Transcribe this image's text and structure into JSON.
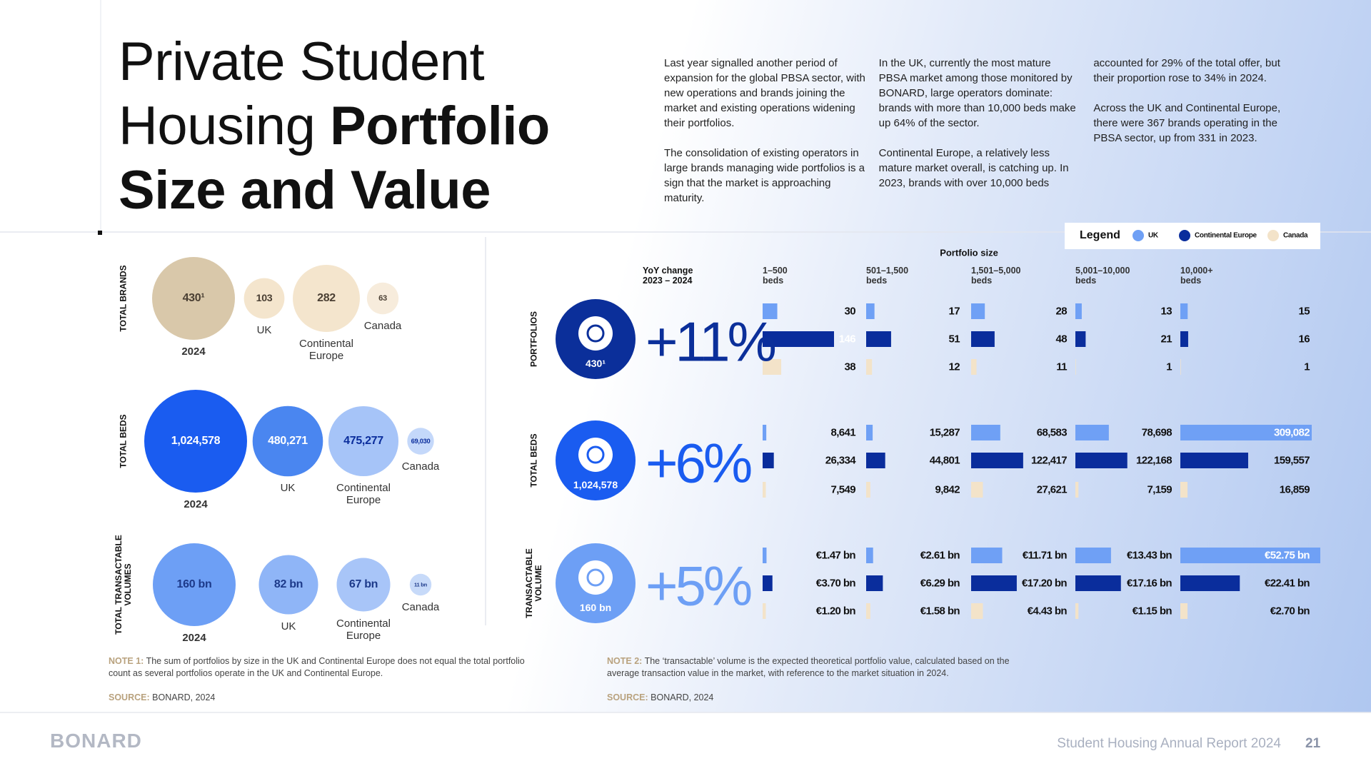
{
  "header": {
    "title_regular": "Private Student Housing",
    "title_bold": "Portfolio Size and Value",
    "intro": [
      "Last year signalled another period of expansion for the global PBSA sector, with new operations and brands joining the market and existing operations widening their portfolios.",
      "The consolidation of existing operators in large brands managing wide portfolios is a sign that the market is approaching maturity.",
      "In the UK, currently the most mature PBSA market among those monitored by BONARD, large operators dominate: brands with more than 10,000 beds make up 64% of the sector.",
      "Continental Europe, a relatively less mature market overall, is catching up. In 2023, brands with over 10,000 beds accounted for 29% of the total offer, but their proportion rose to 34% in 2024.",
      "Across the UK and Continental Europe, there were 367 brands operating in the PBSA sector, up from 331 in 2023."
    ]
  },
  "legend": {
    "title": "Legend",
    "items": [
      {
        "name": "UK",
        "color": "#6fa0f5"
      },
      {
        "name": "Continental Europe",
        "color": "#0a2d9c"
      },
      {
        "name": "Canada",
        "color": "#f3e3c9"
      }
    ]
  },
  "totals": {
    "groups": [
      {
        "label": "TOTAL BRANDS",
        "names": [
          "2024",
          "UK",
          "Continental Europe",
          "Canada"
        ],
        "values": [
          {
            "value": 430,
            "label": "430¹"
          },
          103,
          282,
          63
        ],
        "colors": [
          "#d9c8aa",
          "#f4e5cd",
          "#f4e5cd",
          "#f7ecdc"
        ],
        "text_colors": [
          "#4a3f33",
          "#4a3f33",
          "#4a3f33",
          "#4a3f33"
        ]
      },
      {
        "label": "TOTAL BEDS",
        "names": [
          "2024",
          "UK",
          "Continental Europe",
          "Canada"
        ],
        "values": [
          {
            "value": 1024578,
            "label": "1,024,578"
          },
          {
            "value": 480271,
            "label": "480,271"
          },
          {
            "value": 475277,
            "label": "475,277"
          },
          {
            "value": 69030,
            "label": "69,030"
          }
        ],
        "colors": [
          "#1a5cf0",
          "#4a86f0",
          "#a6c4f8",
          "#c4d8fa"
        ],
        "text_colors": [
          "#ffffff",
          "#ffffff",
          "#0a2d9c",
          "#0a2d9c"
        ]
      },
      {
        "label": "TOTAL TRANSACTABLE VOLUMES",
        "names": [
          "2024",
          "UK",
          "Continental Europe",
          "Canada"
        ],
        "values": [
          {
            "value": 160,
            "label": "160 bn"
          },
          {
            "value": 82,
            "label": "82 bn"
          },
          {
            "value": 67,
            "label": "67 bn"
          },
          {
            "value": 11,
            "label": "11 bn"
          }
        ],
        "colors": [
          "#6d9ff5",
          "#8fb5f7",
          "#a8c5f8",
          "#c7daf9"
        ],
        "text_colors": [
          "#1d3a8a",
          "#1d3a8a",
          "#1d3a8a",
          "#1d3a8a"
        ]
      }
    ]
  },
  "portfolio": {
    "title": "Portfolio size",
    "yoy_label": "YoY change",
    "yoy_period": "2023 – 2024",
    "columns": [
      {
        "range": "1–500",
        "unit": "beds"
      },
      {
        "range": "501–1,500",
        "unit": "beds"
      },
      {
        "range": "1,501–5,000",
        "unit": "beds"
      },
      {
        "range": "5,001–10,000",
        "unit": "beds"
      },
      {
        "range": "10,000+",
        "unit": "beds"
      }
    ],
    "sections": [
      {
        "label": "PORTFOLIOS",
        "badge": "430¹",
        "change": "+11%",
        "color": "#0b2f9a",
        "rows": [
          [
            30,
            17,
            28,
            13,
            15
          ],
          [
            146,
            51,
            48,
            21,
            16
          ],
          [
            38,
            12,
            11,
            1,
            1
          ]
        ]
      },
      {
        "label": "TOTAL BEDS",
        "badge": "1,024,578",
        "change": "+6%",
        "color": "#1a5cf0",
        "rows": [
          [
            {
              "value": 8641,
              "label": "8,641"
            },
            {
              "value": 15287,
              "label": "15,287"
            },
            {
              "value": 68583,
              "label": "68,583"
            },
            {
              "value": 78698,
              "label": "78,698"
            },
            {
              "value": 309082,
              "label": "309,082"
            }
          ],
          [
            {
              "value": 26334,
              "label": "26,334"
            },
            {
              "value": 44801,
              "label": "44,801"
            },
            {
              "value": 122417,
              "label": "122,417"
            },
            {
              "value": 122168,
              "label": "122,168"
            },
            {
              "value": 159557,
              "label": "159,557"
            }
          ],
          [
            {
              "value": 7549,
              "label": "7,549"
            },
            {
              "value": 9842,
              "label": "9,842"
            },
            {
              "value": 27621,
              "label": "27,621"
            },
            {
              "value": 7159,
              "label": "7,159"
            },
            {
              "value": 16859,
              "label": "16,859"
            }
          ]
        ]
      },
      {
        "label": "TRANSACTABLE VOLUME",
        "badge": "160 bn",
        "change": "+5%",
        "color": "#6d9ff5",
        "rows": [
          [
            {
              "value": 1.47,
              "label": "€1.47 bn"
            },
            {
              "value": 2.61,
              "label": "€2.61 bn"
            },
            {
              "value": 11.71,
              "label": "€11.71 bn"
            },
            {
              "value": 13.43,
              "label": "€13.43 bn"
            },
            {
              "value": 52.75,
              "label": "€52.75 bn"
            }
          ],
          [
            {
              "value": 3.7,
              "label": "€3.70 bn"
            },
            {
              "value": 6.29,
              "label": "€6.29 bn"
            },
            {
              "value": 17.2,
              "label": "€17.20 bn"
            },
            {
              "value": 17.16,
              "label": "€17.16 bn"
            },
            {
              "value": 22.41,
              "label": "€22.41 bn"
            }
          ],
          [
            {
              "value": 1.2,
              "label": "€1.20 bn"
            },
            {
              "value": 1.58,
              "label": "€1.58 bn"
            },
            {
              "value": 4.43,
              "label": "€4.43 bn"
            },
            {
              "value": 1.15,
              "label": "€1.15 bn"
            },
            {
              "value": 2.7,
              "label": "€2.70 bn"
            }
          ]
        ]
      }
    ]
  },
  "notes": [
    {
      "label": "NOTE 1:",
      "text": "The sum of portfolios by size in the UK and Continental Europe does not equal the total portfolio count as several portfolios operate in the UK and Continental Europe.",
      "source_label": "SOURCE:",
      "source": "BONARD, 2024"
    },
    {
      "label": "NOTE 2:",
      "text": "The ‘transactable’ volume is the expected theoretical portfolio value, calculated based on the average transaction value in the market, with reference to the market situation in 2024.",
      "source_label": "SOURCE:",
      "source": "BONARD, 2024"
    }
  ],
  "footer": {
    "logo": "BONARD",
    "report": "Student Housing Annual Report 2024",
    "page": "21"
  }
}
